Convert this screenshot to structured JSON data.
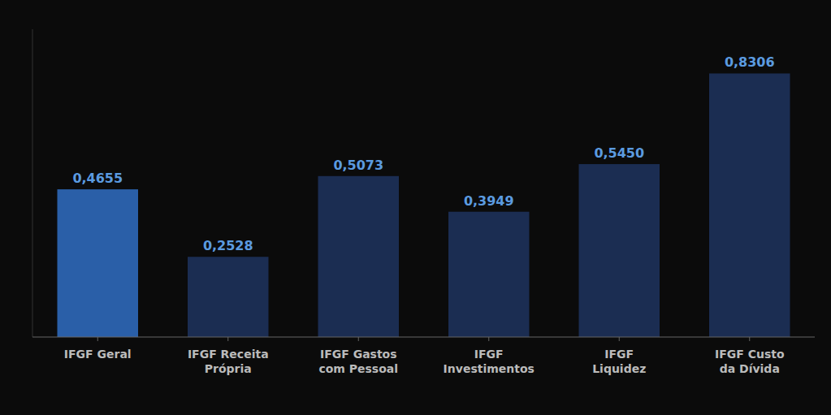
{
  "chart_data": {
    "type": "bar",
    "categories": [
      "IFGF Geral",
      "IFGF Receita\nPrópria",
      "IFGF Gastos\ncom Pessoal",
      "IFGF\nInvestimentos",
      "IFGF\nLiquidez",
      "IFGF Custo\nda Dívida"
    ],
    "values": [
      0.4655,
      0.2528,
      0.5073,
      0.3949,
      0.545,
      0.8306
    ],
    "value_labels": [
      "0,4655",
      "0,2528",
      "0,5073",
      "0,3949",
      "0,5450",
      "0,8306"
    ],
    "data_labels": true,
    "colors": [
      "#2A5FA8",
      "#1B2D52",
      "#1B2D52",
      "#1B2D52",
      "#1B2D52",
      "#1B2D52"
    ],
    "ylim": [
      0,
      0.97
    ],
    "tick_labels": "x",
    "grid": false
  }
}
